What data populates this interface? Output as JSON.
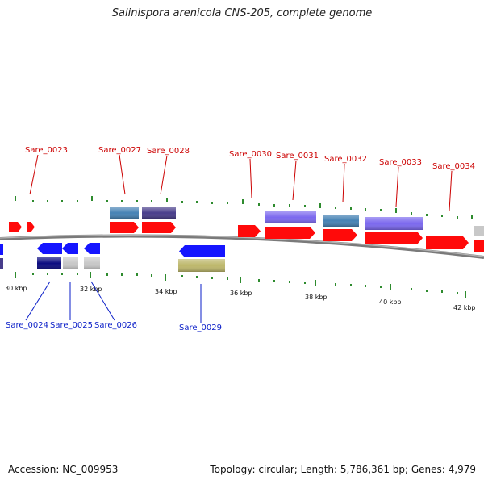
{
  "title": "Salinispora arenicola CNS-205, complete genome",
  "footer": {
    "accession": "Accession: NC_009953",
    "stats": "Topology: circular; Length: 5,786,361 bp; Genes: 4,979"
  },
  "colors": {
    "cds_red": "#ff0a0a",
    "cds_blue": "#1515ff",
    "navy": "#0a0a80",
    "steelblue": "#4682b4",
    "darkslate": "#483d8b",
    "slateblue": "#7b68ee",
    "lightgray": "#c8c8c8",
    "khaki": "#bdb76b",
    "tick": "#2e8b2e",
    "backbone": "#808080"
  },
  "ticks": {
    "major_labels": [
      "30 kbp",
      "32 kbp",
      "34 kbp",
      "36 kbp",
      "38 kbp",
      "40 kbp",
      "42 kbp"
    ]
  },
  "labels_top": [
    "Sare_0023",
    "Sare_0027",
    "Sare_0028",
    "Sare_0030",
    "Sare_0031",
    "Sare_0032",
    "Sare_0033",
    "Sare_0034"
  ],
  "labels_bottom": [
    "Sare_0024",
    "Sare_0025",
    "Sare_0026",
    "Sare_0029"
  ],
  "icons": [
    "gene-arrow-right",
    "gene-arrow-left",
    "feature-box"
  ]
}
